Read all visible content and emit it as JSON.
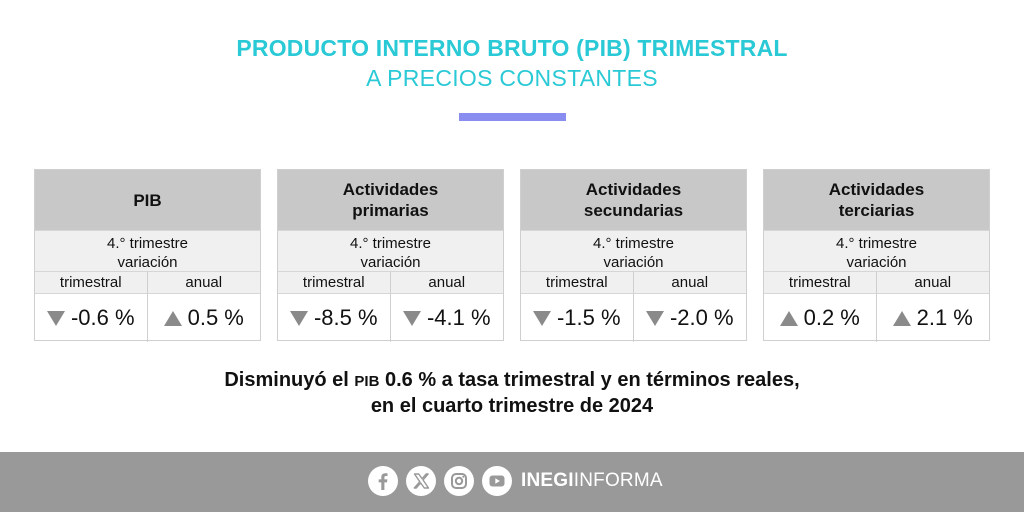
{
  "header": {
    "title": "PRODUCTO INTERNO BRUTO (PIB) TRIMESTRAL",
    "subtitle": "A PRECIOS CONSTANTES"
  },
  "cards": [
    {
      "title_line1": "PIB",
      "title_line2": "",
      "period_line1": "4.° trimestre",
      "period_line2": "variación",
      "col1_label": "trimestral",
      "col2_label": "anual",
      "col1_value": "-0.6 %",
      "col1_direction": "down",
      "col2_value": "0.5 %",
      "col2_direction": "up"
    },
    {
      "title_line1": "Actividades",
      "title_line2": "primarias",
      "period_line1": "4.° trimestre",
      "period_line2": "variación",
      "col1_label": "trimestral",
      "col2_label": "anual",
      "col1_value": "-8.5 %",
      "col1_direction": "down",
      "col2_value": "-4.1 %",
      "col2_direction": "down"
    },
    {
      "title_line1": "Actividades",
      "title_line2": "secundarias",
      "period_line1": "4.° trimestre",
      "period_line2": "variación",
      "col1_label": "trimestral",
      "col2_label": "anual",
      "col1_value": "-1.5 %",
      "col1_direction": "down",
      "col2_value": "-2.0 %",
      "col2_direction": "down"
    },
    {
      "title_line1": "Actividades",
      "title_line2": "terciarias",
      "period_line1": "4.° trimestre",
      "period_line2": "variación",
      "col1_label": "trimestral",
      "col2_label": "anual",
      "col1_value": "0.2 %",
      "col1_direction": "up",
      "col2_value": "2.1 %",
      "col2_direction": "up"
    }
  ],
  "summary": {
    "line1_part1": "Disminuyó el ",
    "line1_abbr": "PIB",
    "line1_part2": " 0.6 % a tasa trimestral y en términos reales,",
    "line2": "en el cuarto trimestre de 2024"
  },
  "footer": {
    "social_icons": [
      "facebook-icon",
      "x-icon",
      "instagram-icon",
      "youtube-icon"
    ],
    "brand_bold": "INEGI",
    "brand_regular": "INFORMA"
  },
  "colors": {
    "title": "#2ac9d6",
    "accent_bar": "#8a8df0",
    "card_header": "#c8c8c8",
    "card_subheader": "#f0f0f0",
    "arrow": "#8a8a8a",
    "footer": "#999999"
  }
}
